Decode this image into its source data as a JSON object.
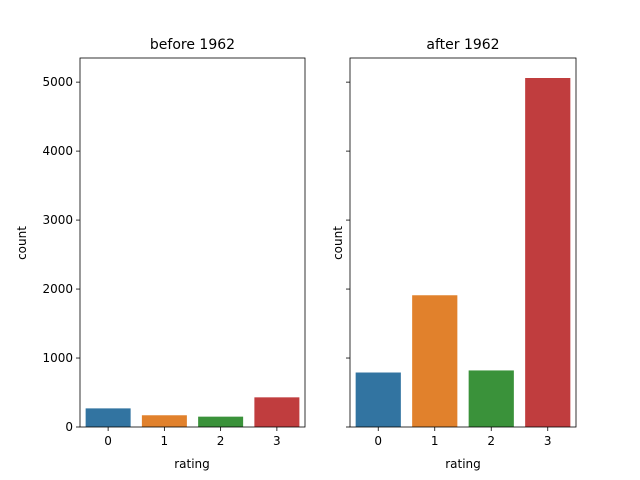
{
  "chart_data": [
    {
      "type": "bar",
      "title": "before 1962",
      "xlabel": "rating",
      "ylabel": "count",
      "categories": [
        "0",
        "1",
        "2",
        "3"
      ],
      "values": [
        270,
        170,
        150,
        430
      ],
      "ylim": [
        0,
        5350
      ],
      "yticks": [
        0,
        1000,
        2000,
        3000,
        4000,
        5000
      ],
      "colors": [
        "#3274a1",
        "#e1812c",
        "#3a923a",
        "#c03d3e"
      ],
      "grid": false,
      "show_ytick_labels": true
    },
    {
      "type": "bar",
      "title": "after 1962",
      "xlabel": "rating",
      "ylabel": "count",
      "categories": [
        "0",
        "1",
        "2",
        "3"
      ],
      "values": [
        790,
        1910,
        820,
        5060
      ],
      "ylim": [
        0,
        5350
      ],
      "yticks": [
        0,
        1000,
        2000,
        3000,
        4000,
        5000
      ],
      "colors": [
        "#3274a1",
        "#e1812c",
        "#3a923a",
        "#c03d3e"
      ],
      "grid": false,
      "show_ytick_labels": false
    }
  ]
}
